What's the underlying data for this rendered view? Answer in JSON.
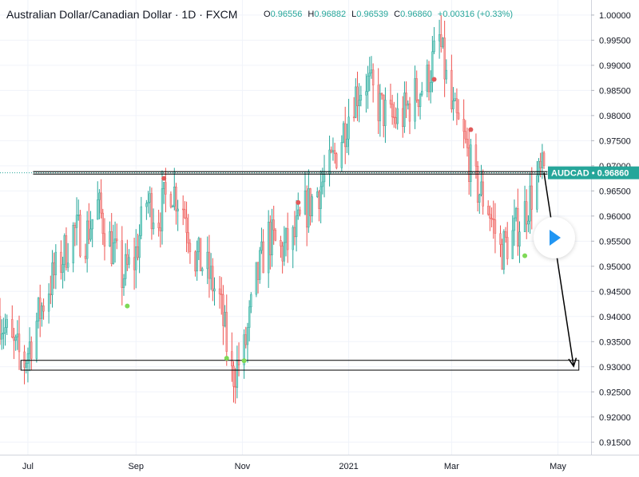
{
  "header": {
    "title": "Australian Dollar/Canadian Dollar · 1D · FXCM",
    "open_label": "O",
    "open": "0.96556",
    "high_label": "H",
    "high": "0.96882",
    "low_label": "L",
    "low": "0.96539",
    "close_label": "C",
    "close": "0.96860",
    "change": "+0.00316 (+0.33%)"
  },
  "price_tag": {
    "symbol": "AUDCAD",
    "price": "0.96860"
  },
  "colors": {
    "up": "#26a69a",
    "down": "#ef5350",
    "up_light": "#7dd3c7",
    "down_light": "#f4a1a0",
    "dot_green": "#7ed957",
    "dot_red": "#e05a5a",
    "play": "#2196f3"
  },
  "chart_data": {
    "type": "candlestick",
    "symbol": "AUDCAD",
    "timeframe": "1D",
    "source": "FXCM",
    "x_range": [
      "2020-06-15",
      "2021-05-20"
    ],
    "ylim": [
      0.9125,
      1.003
    ],
    "y_ticks": [
      0.915,
      0.92,
      0.925,
      0.93,
      0.935,
      0.94,
      0.945,
      0.95,
      0.955,
      0.96,
      0.965,
      0.97,
      0.975,
      0.98,
      0.985,
      0.99,
      0.995,
      1.0
    ],
    "x_ticks": [
      {
        "label": "Jul",
        "date": "2020-07-01"
      },
      {
        "label": "Sep",
        "date": "2020-09-01"
      },
      {
        "label": "Nov",
        "date": "2020-11-01"
      },
      {
        "label": "2021",
        "date": "2021-01-01"
      },
      {
        "label": "Mar",
        "date": "2021-03-01"
      },
      {
        "label": "May",
        "date": "2021-05-01"
      }
    ],
    "close_path": [
      [
        "2020-06-15",
        0.94
      ],
      [
        "2020-06-22",
        0.934
      ],
      [
        "2020-06-29",
        0.931
      ],
      [
        "2020-07-06",
        0.939
      ],
      [
        "2020-07-13",
        0.946
      ],
      [
        "2020-07-20",
        0.951
      ],
      [
        "2020-07-27",
        0.957
      ],
      [
        "2020-08-03",
        0.956
      ],
      [
        "2020-08-10",
        0.962
      ],
      [
        "2020-08-17",
        0.955
      ],
      [
        "2020-08-24",
        0.948
      ],
      [
        "2020-08-31",
        0.951
      ],
      [
        "2020-09-07",
        0.963
      ],
      [
        "2020-09-14",
        0.96
      ],
      [
        "2020-09-21",
        0.966
      ],
      [
        "2020-09-28",
        0.962
      ],
      [
        "2020-10-05",
        0.952
      ],
      [
        "2020-10-12",
        0.949
      ],
      [
        "2020-10-19",
        0.943
      ],
      [
        "2020-10-26",
        0.928
      ],
      [
        "2020-11-02",
        0.933
      ],
      [
        "2020-11-09",
        0.947
      ],
      [
        "2020-11-16",
        0.956
      ],
      [
        "2020-11-23",
        0.953
      ],
      [
        "2020-11-30",
        0.955
      ],
      [
        "2020-12-07",
        0.961
      ],
      [
        "2020-12-14",
        0.965
      ],
      [
        "2020-12-21",
        0.969
      ],
      [
        "2020-12-28",
        0.976
      ],
      [
        "2021-01-04",
        0.984
      ],
      [
        "2021-01-11",
        0.987
      ],
      [
        "2021-01-18",
        0.982
      ],
      [
        "2021-01-25",
        0.979
      ],
      [
        "2021-02-01",
        0.98
      ],
      [
        "2021-02-08",
        0.984
      ],
      [
        "2021-02-15",
        0.987
      ],
      [
        "2021-02-22",
        0.995
      ],
      [
        "2021-03-01",
        0.981
      ],
      [
        "2021-03-08",
        0.975
      ],
      [
        "2021-03-15",
        0.966
      ],
      [
        "2021-03-22",
        0.962
      ],
      [
        "2021-03-29",
        0.953
      ],
      [
        "2021-04-05",
        0.956
      ],
      [
        "2021-04-12",
        0.961
      ],
      [
        "2021-04-19",
        0.967
      ],
      [
        "2021-04-23",
        0.9686
      ]
    ],
    "fractal_highs": [
      {
        "date": "2020-09-17",
        "price": 0.9675
      },
      {
        "date": "2020-12-03",
        "price": 0.9627
      },
      {
        "date": "2021-02-19",
        "price": 0.9872
      },
      {
        "date": "2021-03-12",
        "price": 0.9772
      }
    ],
    "fractal_lows": [
      {
        "date": "2020-08-27",
        "price": 0.9421
      },
      {
        "date": "2020-10-23",
        "price": 0.9317
      },
      {
        "date": "2020-11-02",
        "price": 0.9312
      },
      {
        "date": "2021-04-12",
        "price": 0.9521
      }
    ],
    "resistance_price": 0.9686,
    "support_zone": [
      0.9298,
      0.9308
    ],
    "projection": {
      "from": [
        "2021-04-23",
        0.9686
      ],
      "to": [
        "2021-05-10",
        0.9301
      ]
    }
  }
}
